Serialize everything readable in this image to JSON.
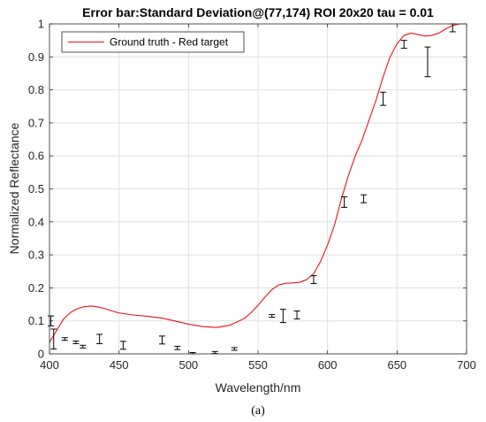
{
  "chart_data": {
    "type": "line",
    "title": "Error bar:Standard Deviation@(77,174) ROI 20x20 tau = 0.01",
    "xlabel": "Wavelength/nm",
    "ylabel": "Normalized Reflectance",
    "xlim": [
      400,
      700
    ],
    "ylim": [
      0,
      1
    ],
    "xticks": [
      "400",
      "450",
      "500",
      "550",
      "600",
      "650",
      "700"
    ],
    "yticks": [
      "0",
      "0.1",
      "0.2",
      "0.3",
      "0.4",
      "0.5",
      "0.6",
      "0.7",
      "0.8",
      "0.9",
      "1"
    ],
    "grid": true,
    "legend_position": "top-left",
    "series": [
      {
        "name": "Ground truth - Red target",
        "color": "#e8141b",
        "x": [
          400,
          405,
          410,
          415,
          420,
          425,
          430,
          435,
          440,
          445,
          450,
          460,
          470,
          480,
          490,
          500,
          510,
          520,
          530,
          540,
          545,
          550,
          555,
          560,
          565,
          570,
          575,
          580,
          585,
          590,
          595,
          600,
          605,
          610,
          615,
          620,
          625,
          630,
          635,
          640,
          645,
          650,
          655,
          660,
          665,
          670,
          675,
          680,
          685,
          690,
          695,
          700
        ],
        "y": [
          0.035,
          0.07,
          0.105,
          0.125,
          0.137,
          0.143,
          0.145,
          0.142,
          0.137,
          0.13,
          0.124,
          0.118,
          0.114,
          0.109,
          0.1,
          0.09,
          0.083,
          0.08,
          0.087,
          0.107,
          0.125,
          0.147,
          0.172,
          0.195,
          0.209,
          0.214,
          0.215,
          0.217,
          0.225,
          0.243,
          0.28,
          0.33,
          0.39,
          0.47,
          0.54,
          0.6,
          0.65,
          0.71,
          0.77,
          0.84,
          0.9,
          0.94,
          0.965,
          0.972,
          0.968,
          0.963,
          0.965,
          0.972,
          0.985,
          0.995,
          1.0,
          1.0
        ]
      },
      {
        "name": "",
        "type": "errorbar",
        "color": "#000000",
        "points": [
          {
            "x": 401,
            "y": 0.1,
            "err": 0.015
          },
          {
            "x": 403,
            "y": 0.045,
            "err": 0.03
          },
          {
            "x": 411,
            "y": 0.045,
            "err": 0.004
          },
          {
            "x": 419,
            "y": 0.035,
            "err": 0.004
          },
          {
            "x": 424,
            "y": 0.022,
            "err": 0.004
          },
          {
            "x": 436,
            "y": 0.045,
            "err": 0.014
          },
          {
            "x": 453,
            "y": 0.026,
            "err": 0.012
          },
          {
            "x": 481,
            "y": 0.042,
            "err": 0.012
          },
          {
            "x": 492,
            "y": 0.018,
            "err": 0.005
          },
          {
            "x": 503,
            "y": 0.002,
            "err": 0.002
          },
          {
            "x": 519,
            "y": 0.004,
            "err": 0.003
          },
          {
            "x": 533,
            "y": 0.015,
            "err": 0.004
          },
          {
            "x": 560,
            "y": 0.115,
            "err": 0.004
          },
          {
            "x": 568,
            "y": 0.115,
            "err": 0.02
          },
          {
            "x": 578,
            "y": 0.118,
            "err": 0.012
          },
          {
            "x": 590,
            "y": 0.225,
            "err": 0.012
          },
          {
            "x": 612,
            "y": 0.46,
            "err": 0.016
          },
          {
            "x": 626,
            "y": 0.47,
            "err": 0.012
          },
          {
            "x": 640,
            "y": 0.773,
            "err": 0.02
          },
          {
            "x": 655,
            "y": 0.938,
            "err": 0.012
          },
          {
            "x": 672,
            "y": 0.885,
            "err": 0.045
          },
          {
            "x": 690,
            "y": 0.988,
            "err": 0.012
          }
        ]
      }
    ]
  },
  "caption": "(a)"
}
